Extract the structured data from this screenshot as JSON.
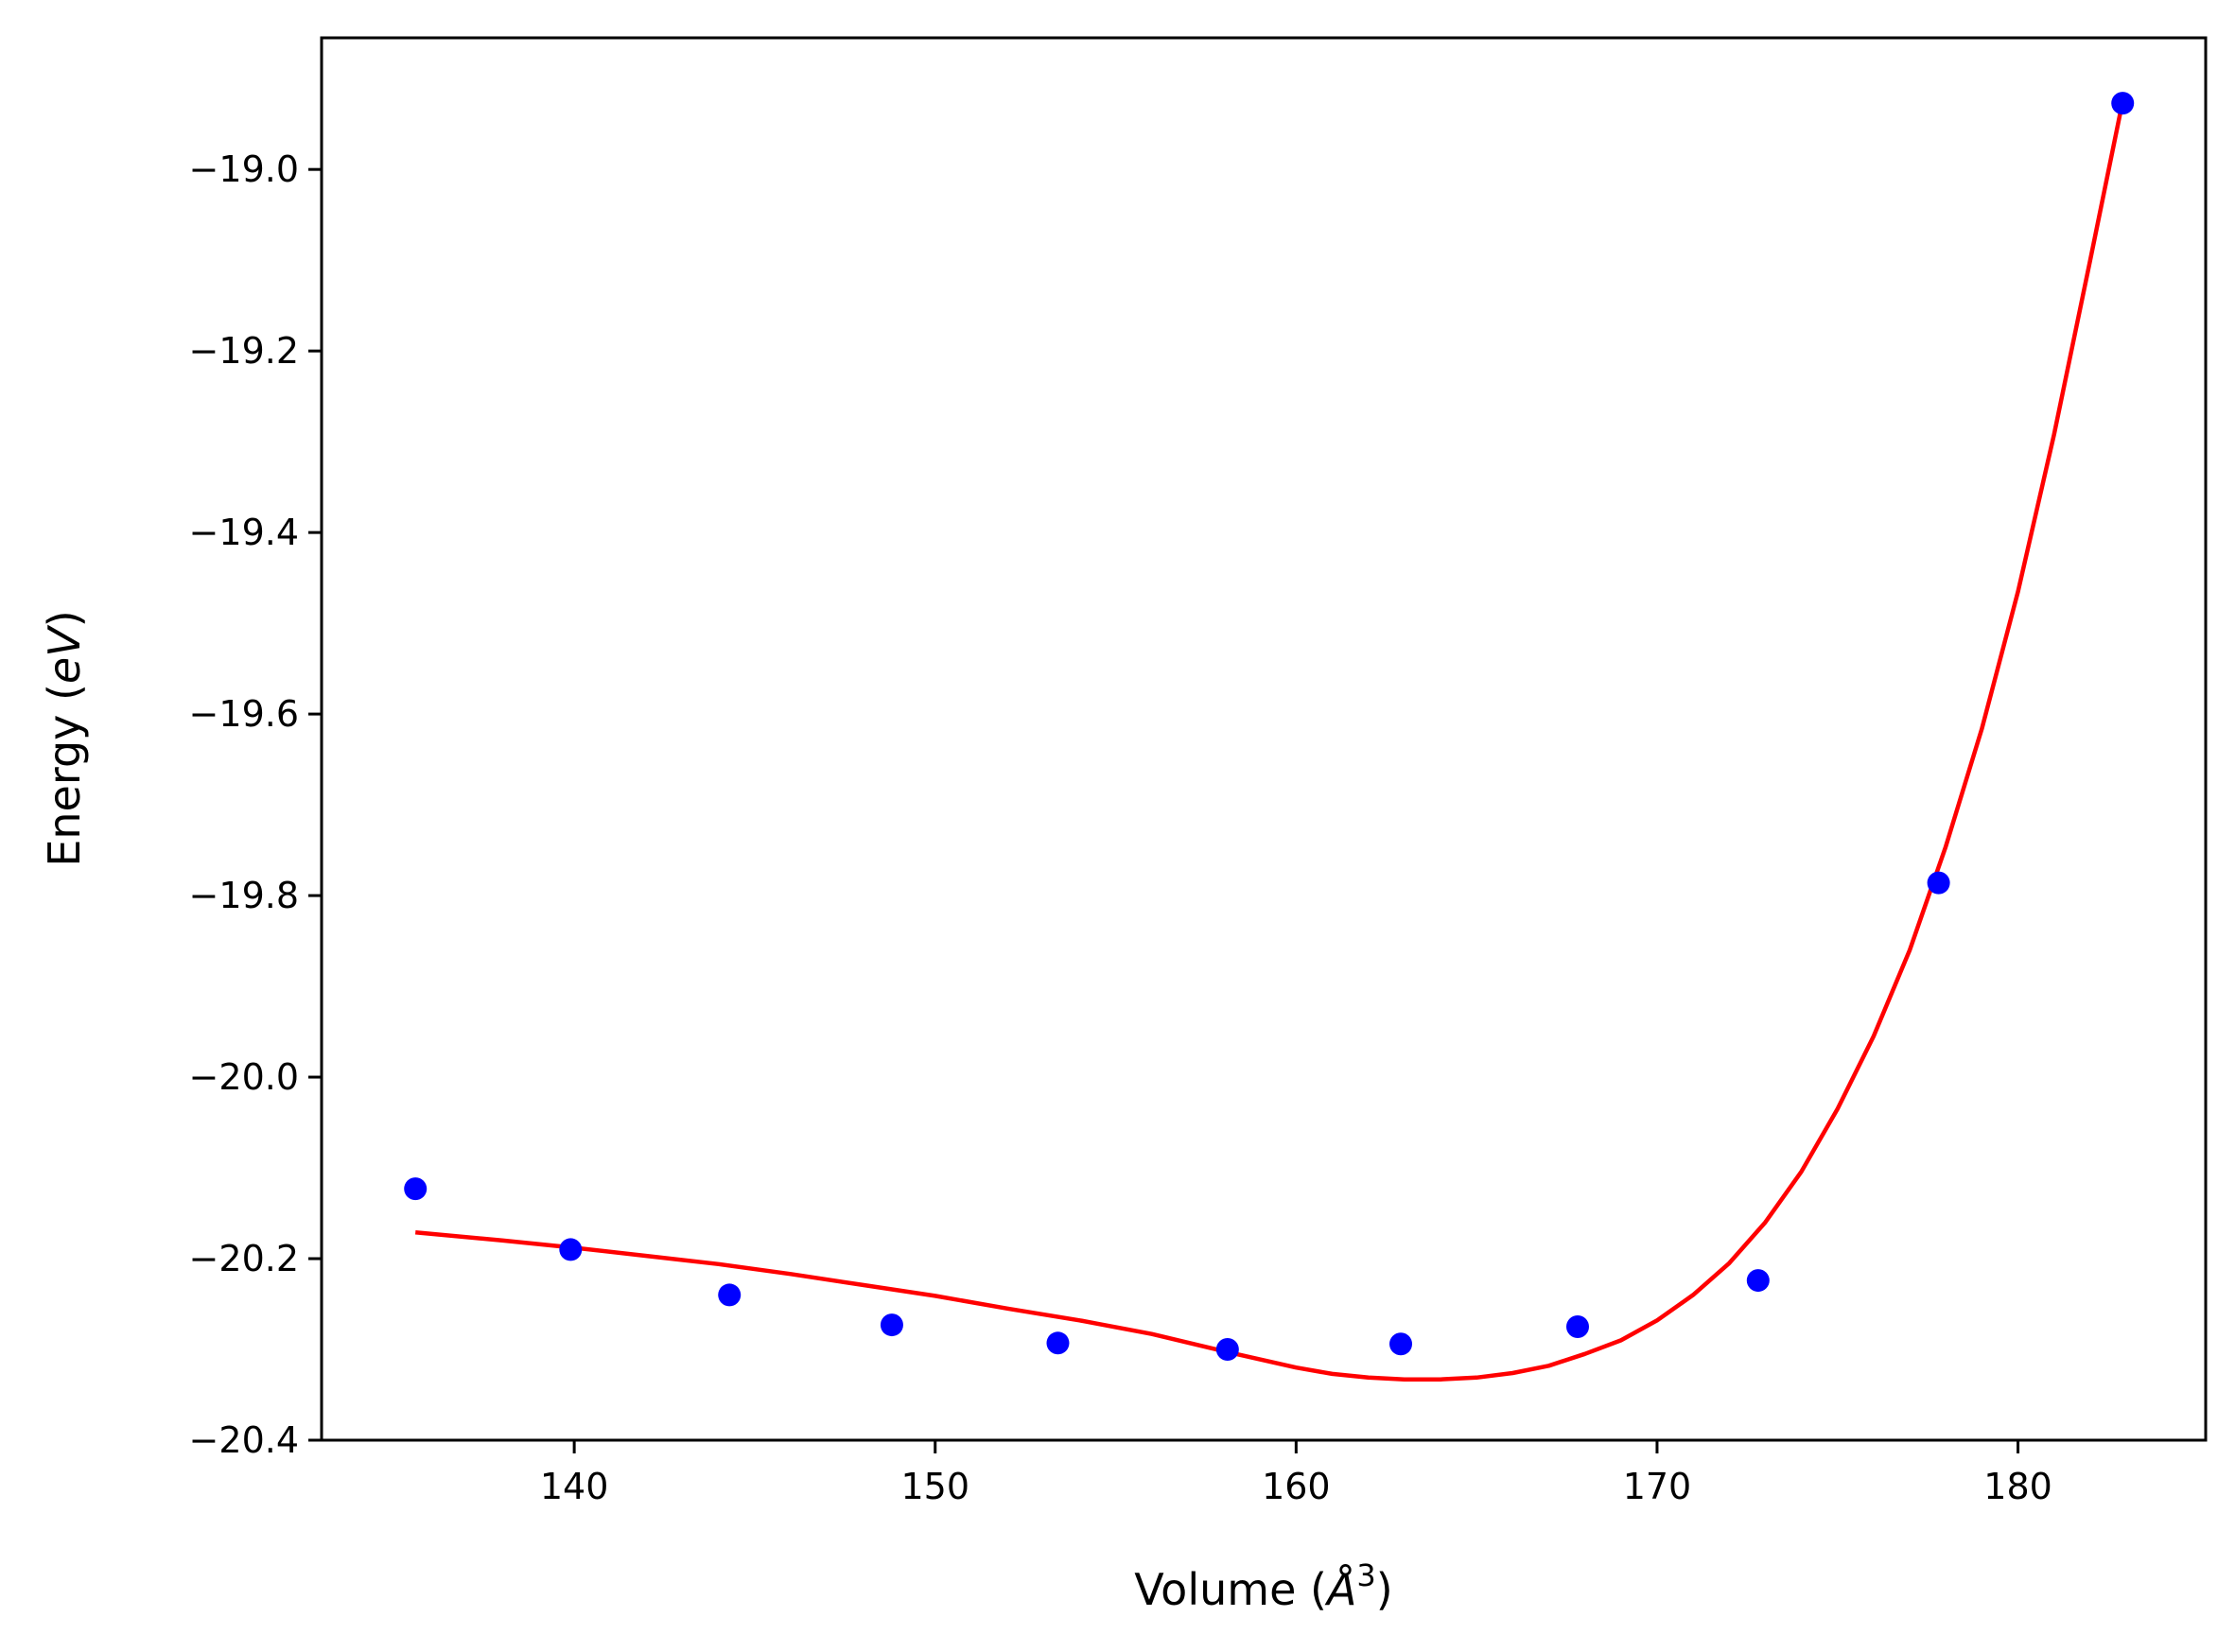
{
  "chart_data": {
    "type": "scatter",
    "xlabel": "Volume (",
    "xlabel_unit": "Å",
    "xlabel_exp": "3",
    "xlabel_close": ")",
    "ylabel": "Energy (",
    "ylabel_unit": "eV",
    "ylabel_close": ")",
    "xlim": [
      133.0,
      185.2
    ],
    "ylim": [
      -20.4,
      -18.855
    ],
    "x_ticks": [
      140,
      150,
      160,
      170,
      180
    ],
    "x_tick_labels": [
      "140",
      "150",
      "160",
      "170",
      "180"
    ],
    "y_ticks": [
      -19.0,
      -19.2,
      -19.4,
      -19.6,
      -19.8,
      -20.0,
      -20.2,
      -20.4
    ],
    "y_tick_labels": [
      "−19.0",
      "−19.2",
      "−19.4",
      "−19.6",
      "−19.8",
      "−20.0",
      "−20.2",
      "−20.4"
    ],
    "grid": false,
    "series": [
      {
        "kind": "scatter",
        "color": "#0000ff",
        "x": [
          135.6,
          139.9,
          144.3,
          148.8,
          153.4,
          158.1,
          162.9,
          167.8,
          172.8,
          177.8,
          182.9
        ],
        "y": [
          -20.123,
          -20.19,
          -20.24,
          -20.273,
          -20.293,
          -20.3,
          -20.294,
          -20.275,
          -20.224,
          -19.786,
          -18.927
        ]
      },
      {
        "kind": "line",
        "color": "#ff0000",
        "x": [
          135.6,
          138,
          140,
          142,
          144,
          146,
          148,
          150,
          152,
          154,
          156,
          158,
          160,
          161,
          162,
          163,
          163.5,
          164,
          165,
          166,
          167,
          168,
          169,
          170,
          171,
          172,
          173,
          174,
          175,
          176,
          177,
          178,
          179,
          180,
          181,
          182,
          182.9
        ],
        "y": [
          -20.171,
          -20.18,
          -20.188,
          -20.197,
          -20.206,
          -20.217,
          -20.229,
          -20.241,
          -20.255,
          -20.268,
          -20.283,
          -20.302,
          -20.32,
          -20.327,
          -20.331,
          -20.333,
          -20.333,
          -20.333,
          -20.331,
          -20.326,
          -20.318,
          -20.305,
          -20.29,
          -20.268,
          -20.24,
          -20.205,
          -20.16,
          -20.104,
          -20.035,
          -19.955,
          -19.86,
          -19.746,
          -19.616,
          -19.465,
          -19.292,
          -19.1,
          -18.925
        ]
      }
    ]
  }
}
